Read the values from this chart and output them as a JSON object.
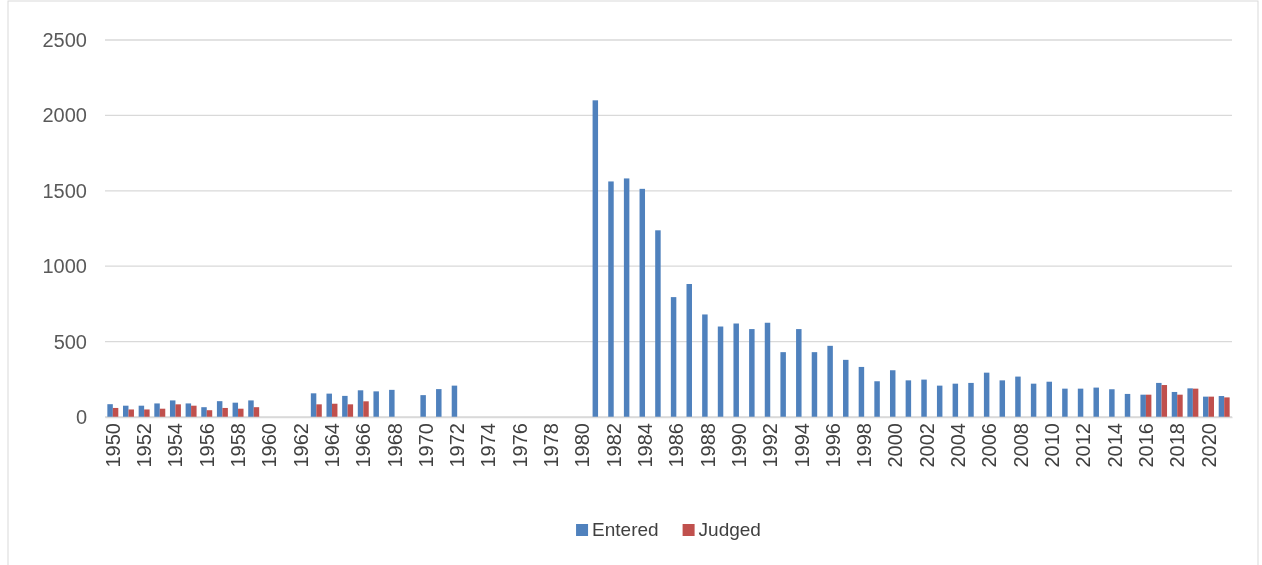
{
  "chart_data": {
    "type": "bar",
    "categories": [
      "1950",
      null,
      "1952",
      null,
      "1954",
      null,
      "1956",
      null,
      "1958",
      null,
      "1960",
      null,
      "1962",
      null,
      "1964",
      null,
      "1966",
      null,
      "1968",
      null,
      "1970",
      null,
      "1972",
      null,
      "1974",
      null,
      "1976",
      null,
      "1978",
      null,
      "1980",
      null,
      "1982",
      null,
      "1984",
      null,
      "1986",
      null,
      "1988",
      null,
      "1990",
      null,
      "1992",
      null,
      "1994",
      null,
      "1996",
      null,
      "1998",
      null,
      "2000",
      null,
      "2002",
      null,
      "2004",
      null,
      "2006",
      null,
      "2008",
      null,
      "2010",
      null,
      "2012",
      null,
      "2014",
      null,
      "2016",
      null,
      "2018",
      null,
      "2020",
      null
    ],
    "series": [
      {
        "name": "Entered",
        "color": "#4f81bd",
        "values": [
          85,
          75,
          75,
          90,
          110,
          90,
          65,
          105,
          95,
          110,
          null,
          null,
          null,
          157,
          155,
          140,
          177,
          170,
          180,
          null,
          145,
          185,
          208,
          null,
          null,
          null,
          null,
          null,
          null,
          null,
          null,
          2100,
          1562,
          1582,
          1513,
          1238,
          795,
          882,
          680,
          600,
          620,
          583,
          625,
          430,
          583,
          430,
          472,
          379,
          332,
          237,
          310,
          243,
          248,
          208,
          221,
          226,
          294,
          243,
          268,
          221,
          234,
          188,
          188,
          195,
          184,
          153,
          148,
          226,
          166,
          190,
          135,
          139
        ]
      },
      {
        "name": "Judged",
        "color": "#c0504d",
        "values": [
          60,
          50,
          50,
          55,
          84,
          75,
          45,
          60,
          55,
          65,
          null,
          null,
          null,
          84,
          88,
          84,
          104,
          null,
          null,
          null,
          null,
          null,
          null,
          null,
          null,
          null,
          null,
          null,
          null,
          null,
          null,
          null,
          null,
          null,
          null,
          null,
          null,
          null,
          null,
          null,
          null,
          null,
          null,
          null,
          null,
          null,
          null,
          null,
          null,
          null,
          null,
          null,
          null,
          null,
          null,
          null,
          null,
          null,
          null,
          null,
          null,
          null,
          null,
          null,
          null,
          null,
          148,
          212,
          148,
          188,
          135,
          130
        ]
      }
    ],
    "ylim": [
      0,
      2500
    ],
    "yticks": [
      0,
      500,
      1000,
      1500,
      2000,
      2500
    ],
    "grid": "y",
    "legend": "bottom"
  }
}
